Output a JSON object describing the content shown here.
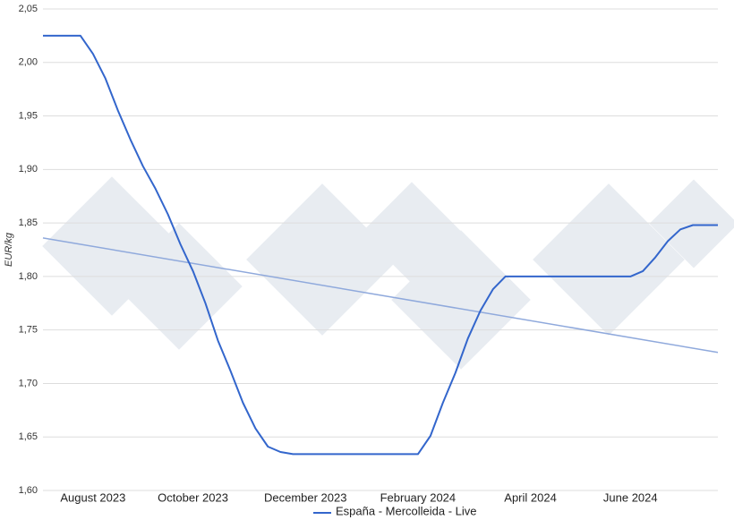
{
  "chart_data": {
    "type": "line",
    "y_label": "EUR/kg",
    "categories": [
      null,
      null,
      null,
      null,
      "August 2023",
      null,
      null,
      null,
      null,
      null,
      null,
      null,
      "October 2023",
      null,
      null,
      null,
      null,
      null,
      null,
      null,
      null,
      "December 2023",
      null,
      null,
      null,
      null,
      null,
      null,
      null,
      null,
      "February 2024",
      null,
      null,
      null,
      null,
      null,
      null,
      null,
      null,
      "April 2024",
      null,
      null,
      null,
      null,
      null,
      null,
      null,
      "June 2024",
      null,
      null,
      null,
      null,
      null,
      null,
      null
    ],
    "series": [
      {
        "name": "España - Mercolleida - Live",
        "color": "#3366cc",
        "values": [
          2.025,
          2.025,
          2.025,
          2.025,
          2.008,
          1.985,
          1.955,
          1.928,
          1.903,
          1.882,
          1.858,
          1.83,
          1.805,
          1.775,
          1.74,
          1.712,
          1.682,
          1.658,
          1.641,
          1.636,
          1.634,
          1.634,
          1.634,
          1.634,
          1.634,
          1.634,
          1.634,
          1.634,
          1.634,
          1.634,
          1.634,
          1.651,
          1.682,
          1.71,
          1.742,
          1.768,
          1.788,
          1.8,
          1.8,
          1.8,
          1.8,
          1.8,
          1.8,
          1.8,
          1.8,
          1.8,
          1.8,
          1.8,
          1.805,
          1.818,
          1.833,
          1.844,
          1.848,
          1.848,
          1.848
        ]
      }
    ],
    "trend": {
      "color": "#8fa9dc",
      "values": [
        1.836,
        1.729
      ]
    },
    "ylim": [
      1.6,
      2.05
    ],
    "yticks": [
      {
        "value": 1.6,
        "label": "1,60"
      },
      {
        "value": 1.65,
        "label": "1,65"
      },
      {
        "value": 1.7,
        "label": "1,70"
      },
      {
        "value": 1.75,
        "label": "1,75"
      },
      {
        "value": 1.8,
        "label": "1,80"
      },
      {
        "value": 1.85,
        "label": "1,85"
      },
      {
        "value": 1.9,
        "label": "1,90"
      },
      {
        "value": 1.95,
        "label": "1,95"
      },
      {
        "value": 2.0,
        "label": "2,00"
      },
      {
        "value": 2.05,
        "label": "2,05"
      }
    ],
    "grid": true,
    "legend": "bottom"
  }
}
